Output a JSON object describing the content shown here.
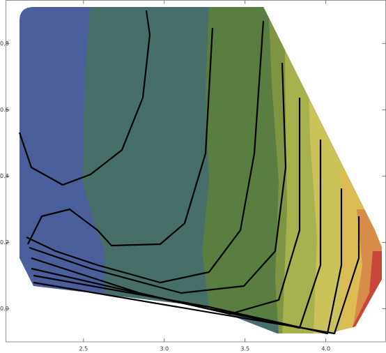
{
  "chart_data": {
    "type": "contour",
    "xlim": [
      2.02,
      4.37
    ],
    "ylim": [
      -0.1,
      0.93
    ],
    "xticks": [
      2.5,
      {
        "value": 3,
        "label": "3.0"
      },
      3.5,
      {
        "value": 4,
        "label": "4.0"
      }
    ],
    "yticks": [
      {
        "value": 0,
        "label": "0.0"
      },
      0.2,
      0.4,
      0.6,
      0.8
    ]
  }
}
